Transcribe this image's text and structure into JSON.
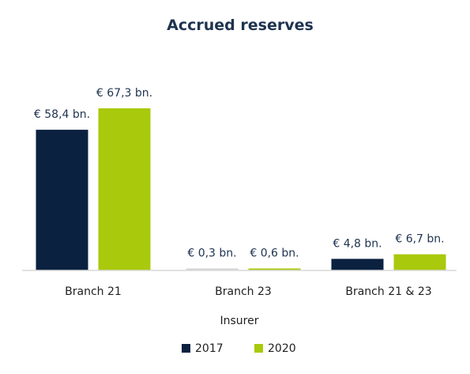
{
  "chart_data": {
    "type": "bar",
    "title": "Accrued reserves",
    "xlabel": "Insurer",
    "ylabel": "",
    "categories": [
      "Branch 21",
      "Branch 23",
      "Branch 21 & 23"
    ],
    "series": [
      {
        "name": "2017",
        "color": "#0b2140",
        "values": [
          58.4,
          0.3,
          4.8
        ],
        "labels": [
          "€ 58,4 bn.",
          "€ 0,3 bn.",
          "€ 4,8 bn."
        ]
      },
      {
        "name": "2020",
        "color": "#a9c90c",
        "values": [
          67.3,
          0.6,
          6.7
        ],
        "labels": [
          "€ 67,3 bn.",
          "€ 0,6 bn.",
          "€ 6,7 bn."
        ]
      }
    ],
    "ylim": [
      0,
      67.3
    ],
    "grid": false,
    "legend_position": "bottom",
    "axis_color": "#d9d9d9"
  }
}
